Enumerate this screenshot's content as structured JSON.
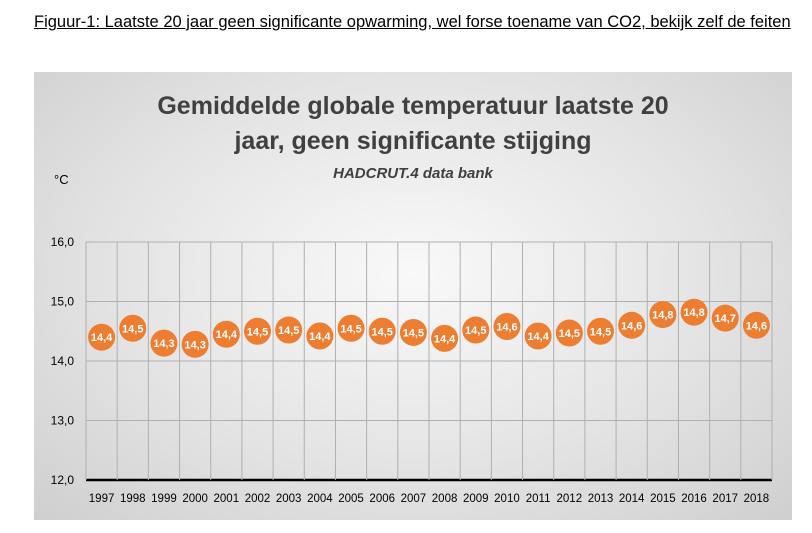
{
  "caption": "Figuur-1: Laatste 20 jaar geen significante opwarming, wel forse toename van CO2, bekijk zelf de feiten",
  "chart_data": {
    "type": "line",
    "title_lines": [
      "Gemiddelde globale temperatuur laatste 20",
      "jaar, geen significante stijging"
    ],
    "subtitle": "HADCRUT.4 data bank",
    "ylabel": "°C",
    "xlabel": "",
    "ylim": [
      12.0,
      16.0
    ],
    "yticks": [
      12.0,
      13.0,
      14.0,
      15.0,
      16.0
    ],
    "ytick_labels": [
      "12,0",
      "13,0",
      "14,0",
      "15,0",
      "16,0"
    ],
    "grid": true,
    "legend": "none",
    "marker_color": "#ed7d31",
    "gridline_color": "#b0b0b0",
    "x": [
      "1997",
      "1998",
      "1999",
      "2000",
      "2001",
      "2002",
      "2003",
      "2004",
      "2005",
      "2006",
      "2007",
      "2008",
      "2009",
      "2010",
      "2011",
      "2012",
      "2013",
      "2014",
      "2015",
      "2016",
      "2017",
      "2018"
    ],
    "y": [
      14.4,
      14.55,
      14.3,
      14.28,
      14.45,
      14.5,
      14.52,
      14.42,
      14.55,
      14.5,
      14.48,
      14.38,
      14.52,
      14.58,
      14.42,
      14.47,
      14.5,
      14.6,
      14.78,
      14.82,
      14.72,
      14.6
    ],
    "data_labels": [
      "14,4",
      "14,5",
      "14,3",
      "14,3",
      "14,4",
      "14,5",
      "14,5",
      "14,4",
      "14,5",
      "14,5",
      "14,5",
      "14,4",
      "14,5",
      "14,6",
      "14,4",
      "14,5",
      "14,5",
      "14,6",
      "14,8",
      "14,8",
      "14,7",
      "14,6"
    ]
  }
}
